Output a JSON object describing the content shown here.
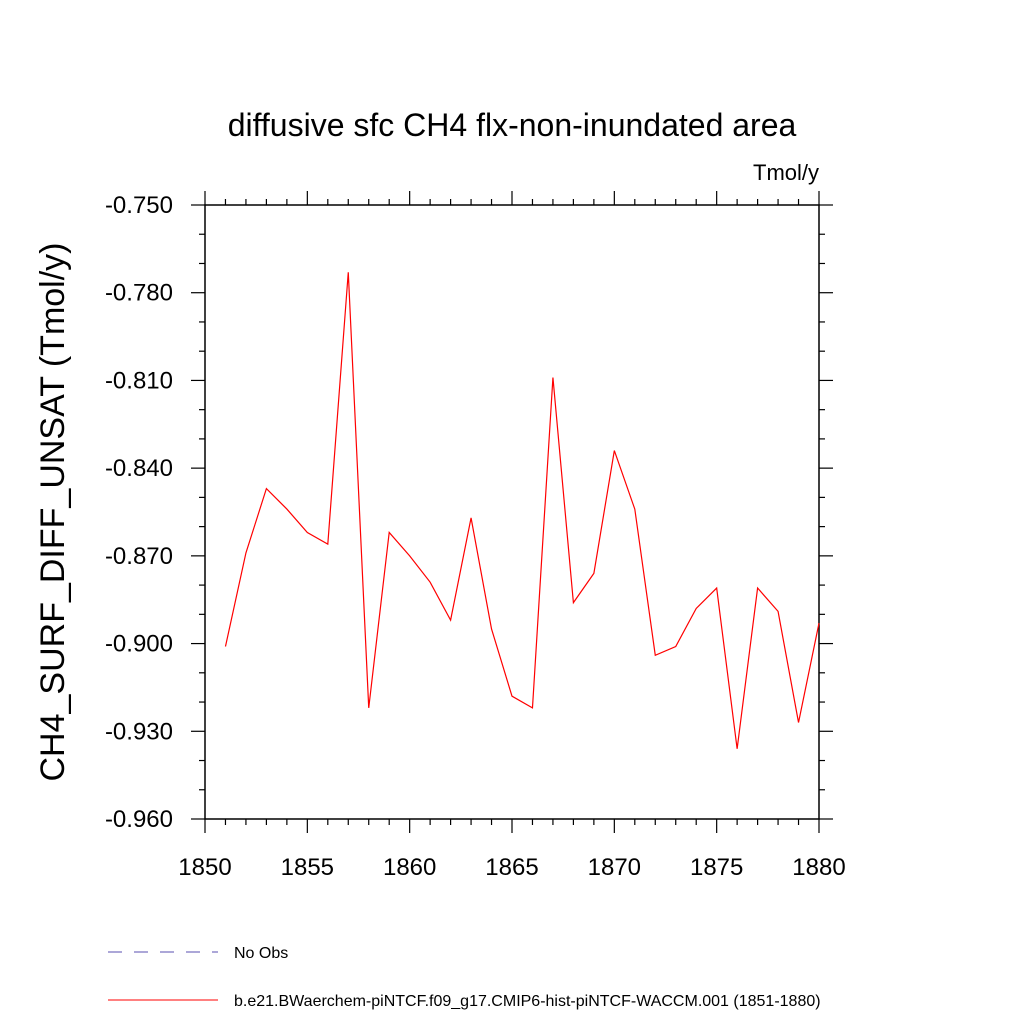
{
  "chart_data": {
    "type": "line",
    "title": "diffusive sfc CH4 flx-non-inundated area",
    "units_label": "Tmol/y",
    "ylabel": "CH4_SURF_DIFF_UNSAT  (Tmol/y)",
    "xlabel": "",
    "xlim": [
      1850,
      1880
    ],
    "ylim": [
      -0.96,
      -0.75
    ],
    "x_ticks": [
      1850,
      1855,
      1860,
      1865,
      1870,
      1875,
      1880
    ],
    "x_tick_labels": [
      "1850",
      "1855",
      "1860",
      "1865",
      "1870",
      "1875",
      "1880"
    ],
    "y_ticks": [
      -0.75,
      -0.78,
      -0.81,
      -0.84,
      -0.87,
      -0.9,
      -0.93,
      -0.96
    ],
    "y_tick_labels": [
      "-0.750",
      "-0.780",
      "-0.810",
      "-0.840",
      "-0.870",
      "-0.900",
      "-0.930",
      "-0.960"
    ],
    "grid": false,
    "legend_position": "bottom-left",
    "series": [
      {
        "name": "b.e21.BWaerchem-piNTCF.f09_g17.CMIP6-hist-piNTCF-WACCM.001 (1851-1880)",
        "color": "#ff0000",
        "style": "solid",
        "x": [
          1851,
          1852,
          1853,
          1854,
          1855,
          1856,
          1857,
          1858,
          1859,
          1860,
          1861,
          1862,
          1863,
          1864,
          1865,
          1866,
          1867,
          1868,
          1869,
          1870,
          1871,
          1872,
          1873,
          1874,
          1875,
          1876,
          1877,
          1878,
          1879,
          1880
        ],
        "y": [
          -0.901,
          -0.869,
          -0.847,
          -0.854,
          -0.862,
          -0.866,
          -0.773,
          -0.922,
          -0.862,
          -0.87,
          -0.879,
          -0.892,
          -0.857,
          -0.895,
          -0.918,
          -0.922,
          -0.809,
          -0.886,
          -0.876,
          -0.834,
          -0.854,
          -0.904,
          -0.901,
          -0.888,
          -0.881,
          -0.936,
          -0.881,
          -0.889,
          -0.927,
          -0.893
        ]
      },
      {
        "name": "No Obs",
        "color": "#5a4fb0",
        "style": "dashed",
        "x": [],
        "y": []
      }
    ]
  }
}
